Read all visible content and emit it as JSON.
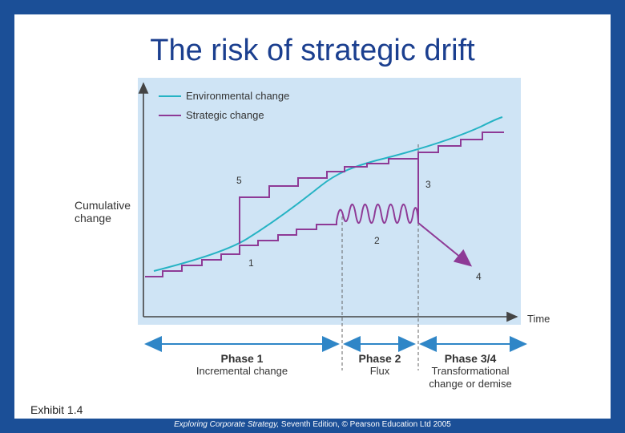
{
  "slide": {
    "title": "The risk of strategic drift",
    "exhibit": "Exhibit 1.4",
    "footer_book": "Exploring Corporate Strategy,",
    "footer_rest": " Seventh Edition, © Pearson Education Ltd 2005"
  },
  "diagram": {
    "y_axis_label_line1": "Cumulative",
    "y_axis_label_line2": "change",
    "x_axis_label": "Time",
    "legend": [
      {
        "label": "Environmental change",
        "color": "#26b3c4"
      },
      {
        "label": "Strategic change",
        "color": "#8e3a96"
      }
    ],
    "markers": [
      "1",
      "2",
      "3",
      "4",
      "5"
    ],
    "phases": [
      {
        "name": "Phase 1",
        "desc1": "Incremental change",
        "desc2": ""
      },
      {
        "name": "Phase 2",
        "desc1": "Flux",
        "desc2": ""
      },
      {
        "name": "Phase 3/4",
        "desc1": "Transformational",
        "desc2": "change or demise"
      }
    ]
  },
  "colors": {
    "frame": "#1b4f97",
    "title": "#1b3f8f",
    "panel": "#cfe4f5",
    "environmental": "#26b3c4",
    "strategic": "#8e3a96",
    "arrows": "#2f86c7"
  }
}
